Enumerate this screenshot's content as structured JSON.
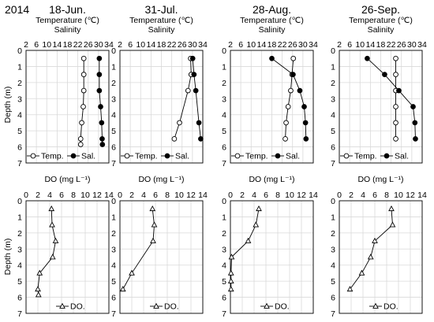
{
  "figure": {
    "year": "2014"
  },
  "chart_data": [
    {
      "type": "line",
      "panel": "upper",
      "date": "18-Jun.",
      "x_axis_top_label": "Temperature (℃)",
      "x_axis_label": "Salinity",
      "x_ticks": [
        "2",
        "6",
        "10",
        "14",
        "18",
        "22",
        "26",
        "30",
        "34"
      ],
      "xlim": [
        2,
        34
      ],
      "y_axis_label": "Depth (m)",
      "y_ticks": [
        "0",
        "1",
        "2",
        "3",
        "4",
        "5",
        "6",
        "7"
      ],
      "ylim": [
        0,
        7
      ],
      "y_inverted": true,
      "grid": true,
      "legend_position": "bottom",
      "series": [
        {
          "name": "Temp.",
          "marker": "open-circle",
          "points": [
            [
              24.3,
              0.5
            ],
            [
              24.3,
              1.5
            ],
            [
              24.3,
              2.5
            ],
            [
              24.1,
              3.5
            ],
            [
              23.5,
              4.5
            ],
            [
              23.1,
              5.5
            ],
            [
              23.1,
              5.85
            ]
          ]
        },
        {
          "name": "Sal.",
          "marker": "filled-circle",
          "points": [
            [
              30.3,
              0.5
            ],
            [
              30.3,
              1.5
            ],
            [
              30.3,
              2.5
            ],
            [
              30.8,
              3.5
            ],
            [
              31.2,
              4.5
            ],
            [
              31.4,
              5.5
            ],
            [
              31.5,
              5.85
            ]
          ]
        }
      ]
    },
    {
      "type": "line",
      "panel": "upper",
      "date": "31-Jul.",
      "x_axis_top_label": "Temperature (℃)",
      "x_axis_label": "Salinity",
      "x_ticks": [
        "2",
        "6",
        "10",
        "14",
        "18",
        "22",
        "26",
        "30",
        "34"
      ],
      "xlim": [
        2,
        34
      ],
      "y_ticks": [
        "0",
        "1",
        "2",
        "3",
        "4",
        "5",
        "6",
        "7"
      ],
      "ylim": [
        0,
        7
      ],
      "y_inverted": true,
      "grid": true,
      "legend_position": "bottom",
      "series": [
        {
          "name": "Temp.",
          "marker": "open-circle",
          "points": [
            [
              29.3,
              0.5
            ],
            [
              29.5,
              1.5
            ],
            [
              28.3,
              2.5
            ],
            [
              25.0,
              4.5
            ],
            [
              23.0,
              5.5
            ]
          ]
        },
        {
          "name": "Sal.",
          "marker": "filled-circle",
          "points": [
            [
              30.1,
              0.5
            ],
            [
              30.6,
              1.5
            ],
            [
              31.3,
              2.5
            ],
            [
              32.5,
              4.5
            ],
            [
              33.2,
              5.5
            ]
          ]
        }
      ]
    },
    {
      "type": "line",
      "panel": "upper",
      "date": "28-Aug.",
      "x_axis_top_label": "Temperature (℃)",
      "x_axis_label": "Salinity",
      "x_ticks": [
        "2",
        "6",
        "10",
        "14",
        "18",
        "22",
        "26",
        "30",
        "34"
      ],
      "xlim": [
        2,
        34
      ],
      "y_ticks": [
        "0",
        "1",
        "2",
        "3",
        "4",
        "5",
        "6",
        "7"
      ],
      "ylim": [
        0,
        7
      ],
      "y_inverted": true,
      "grid": true,
      "legend_position": "bottom",
      "series": [
        {
          "name": "Temp.",
          "marker": "open-circle",
          "points": [
            [
              26.3,
              0.5
            ],
            [
              25.8,
              1.5
            ],
            [
              25.3,
              2.5
            ],
            [
              24.3,
              3.5
            ],
            [
              23.5,
              4.5
            ],
            [
              23.2,
              5.5
            ]
          ]
        },
        {
          "name": "Sal.",
          "marker": "filled-circle",
          "points": [
            [
              18.0,
              0.5
            ],
            [
              26.2,
              1.5
            ],
            [
              28.8,
              2.5
            ],
            [
              30.5,
              3.5
            ],
            [
              31.0,
              4.5
            ],
            [
              31.2,
              5.5
            ]
          ]
        }
      ]
    },
    {
      "type": "line",
      "panel": "upper",
      "date": "26-Sep.",
      "x_axis_top_label": "Temperature (℃)",
      "x_axis_label": "Salinity",
      "x_ticks": [
        "2",
        "6",
        "10",
        "14",
        "18",
        "22",
        "26",
        "30",
        "34"
      ],
      "xlim": [
        2,
        34
      ],
      "y_ticks": [
        "0",
        "1",
        "2",
        "3",
        "4",
        "5",
        "6",
        "7"
      ],
      "ylim": [
        0,
        7
      ],
      "y_inverted": true,
      "grid": true,
      "legend_position": "bottom",
      "series": [
        {
          "name": "Temp.",
          "marker": "open-circle",
          "points": [
            [
              23.8,
              0.5
            ],
            [
              23.8,
              1.5
            ],
            [
              23.8,
              2.5
            ],
            [
              23.8,
              3.5
            ],
            [
              23.8,
              4.5
            ],
            [
              23.8,
              5.5
            ]
          ]
        },
        {
          "name": "Sal.",
          "marker": "filled-circle",
          "points": [
            [
              12.8,
              0.5
            ],
            [
              19.5,
              1.5
            ],
            [
              25.0,
              2.5
            ],
            [
              30.5,
              3.5
            ],
            [
              31.2,
              4.5
            ],
            [
              31.4,
              5.5
            ]
          ]
        }
      ]
    },
    {
      "type": "line",
      "panel": "lower",
      "date": "18-Jun.",
      "x_axis_label": "DO (mg L⁻¹)",
      "x_ticks": [
        "0",
        "2",
        "4",
        "6",
        "8",
        "10",
        "12",
        "14"
      ],
      "xlim": [
        0,
        14
      ],
      "y_axis_label": "Depth (m)",
      "y_ticks": [
        "0",
        "1",
        "2",
        "3",
        "4",
        "5",
        "6",
        "7"
      ],
      "ylim": [
        0,
        7
      ],
      "y_inverted": true,
      "grid": true,
      "legend_position": "bottom",
      "series": [
        {
          "name": "DO.",
          "marker": "open-triangle",
          "points": [
            [
              4.3,
              0.5
            ],
            [
              4.4,
              1.5
            ],
            [
              5.0,
              2.5
            ],
            [
              4.5,
              3.5
            ],
            [
              2.3,
              4.5
            ],
            [
              2.0,
              5.5
            ],
            [
              2.1,
              5.85
            ]
          ]
        }
      ]
    },
    {
      "type": "line",
      "panel": "lower",
      "date": "31-Jul.",
      "x_axis_label": "DO (mg L⁻¹)",
      "x_ticks": [
        "0",
        "2",
        "4",
        "6",
        "8",
        "10",
        "12",
        "14"
      ],
      "xlim": [
        0,
        14
      ],
      "y_ticks": [
        "0",
        "1",
        "2",
        "3",
        "4",
        "5",
        "6",
        "7"
      ],
      "ylim": [
        0,
        7
      ],
      "y_inverted": true,
      "grid": true,
      "legend_position": "bottom",
      "series": [
        {
          "name": "DO.",
          "marker": "open-triangle",
          "points": [
            [
              5.5,
              0.5
            ],
            [
              5.8,
              1.5
            ],
            [
              5.6,
              2.5
            ],
            [
              2.0,
              4.5
            ],
            [
              0.5,
              5.5
            ]
          ]
        }
      ]
    },
    {
      "type": "line",
      "panel": "lower",
      "date": "28-Aug.",
      "x_axis_label": "DO (mg L⁻¹)",
      "x_ticks": [
        "0",
        "2",
        "4",
        "6",
        "8",
        "10",
        "12",
        "14"
      ],
      "xlim": [
        0,
        14
      ],
      "y_ticks": [
        "0",
        "1",
        "2",
        "3",
        "4",
        "5",
        "6",
        "7"
      ],
      "ylim": [
        0,
        7
      ],
      "y_inverted": true,
      "grid": true,
      "legend_position": "bottom",
      "series": [
        {
          "name": "DO.",
          "marker": "open-triangle",
          "points": [
            [
              4.8,
              0.5
            ],
            [
              4.3,
              1.5
            ],
            [
              3.0,
              2.5
            ],
            [
              0.2,
              3.5
            ],
            [
              0.1,
              4.5
            ],
            [
              0.1,
              5.0
            ],
            [
              0.1,
              5.5
            ]
          ]
        }
      ]
    },
    {
      "type": "line",
      "panel": "lower",
      "date": "26-Sep.",
      "x_axis_label": "DO (mg L⁻¹)",
      "x_ticks": [
        "0",
        "2",
        "4",
        "6",
        "8",
        "10",
        "12",
        "14"
      ],
      "xlim": [
        0,
        14
      ],
      "y_ticks": [
        "0",
        "1",
        "2",
        "3",
        "4",
        "5",
        "6",
        "7"
      ],
      "ylim": [
        0,
        7
      ],
      "y_inverted": true,
      "grid": true,
      "legend_position": "bottom",
      "series": [
        {
          "name": "DO.",
          "marker": "open-triangle",
          "points": [
            [
              8.8,
              0.5
            ],
            [
              9.0,
              1.5
            ],
            [
              6.0,
              2.5
            ],
            [
              5.3,
              3.5
            ],
            [
              3.8,
              4.5
            ],
            [
              1.8,
              5.5
            ]
          ]
        }
      ]
    }
  ]
}
